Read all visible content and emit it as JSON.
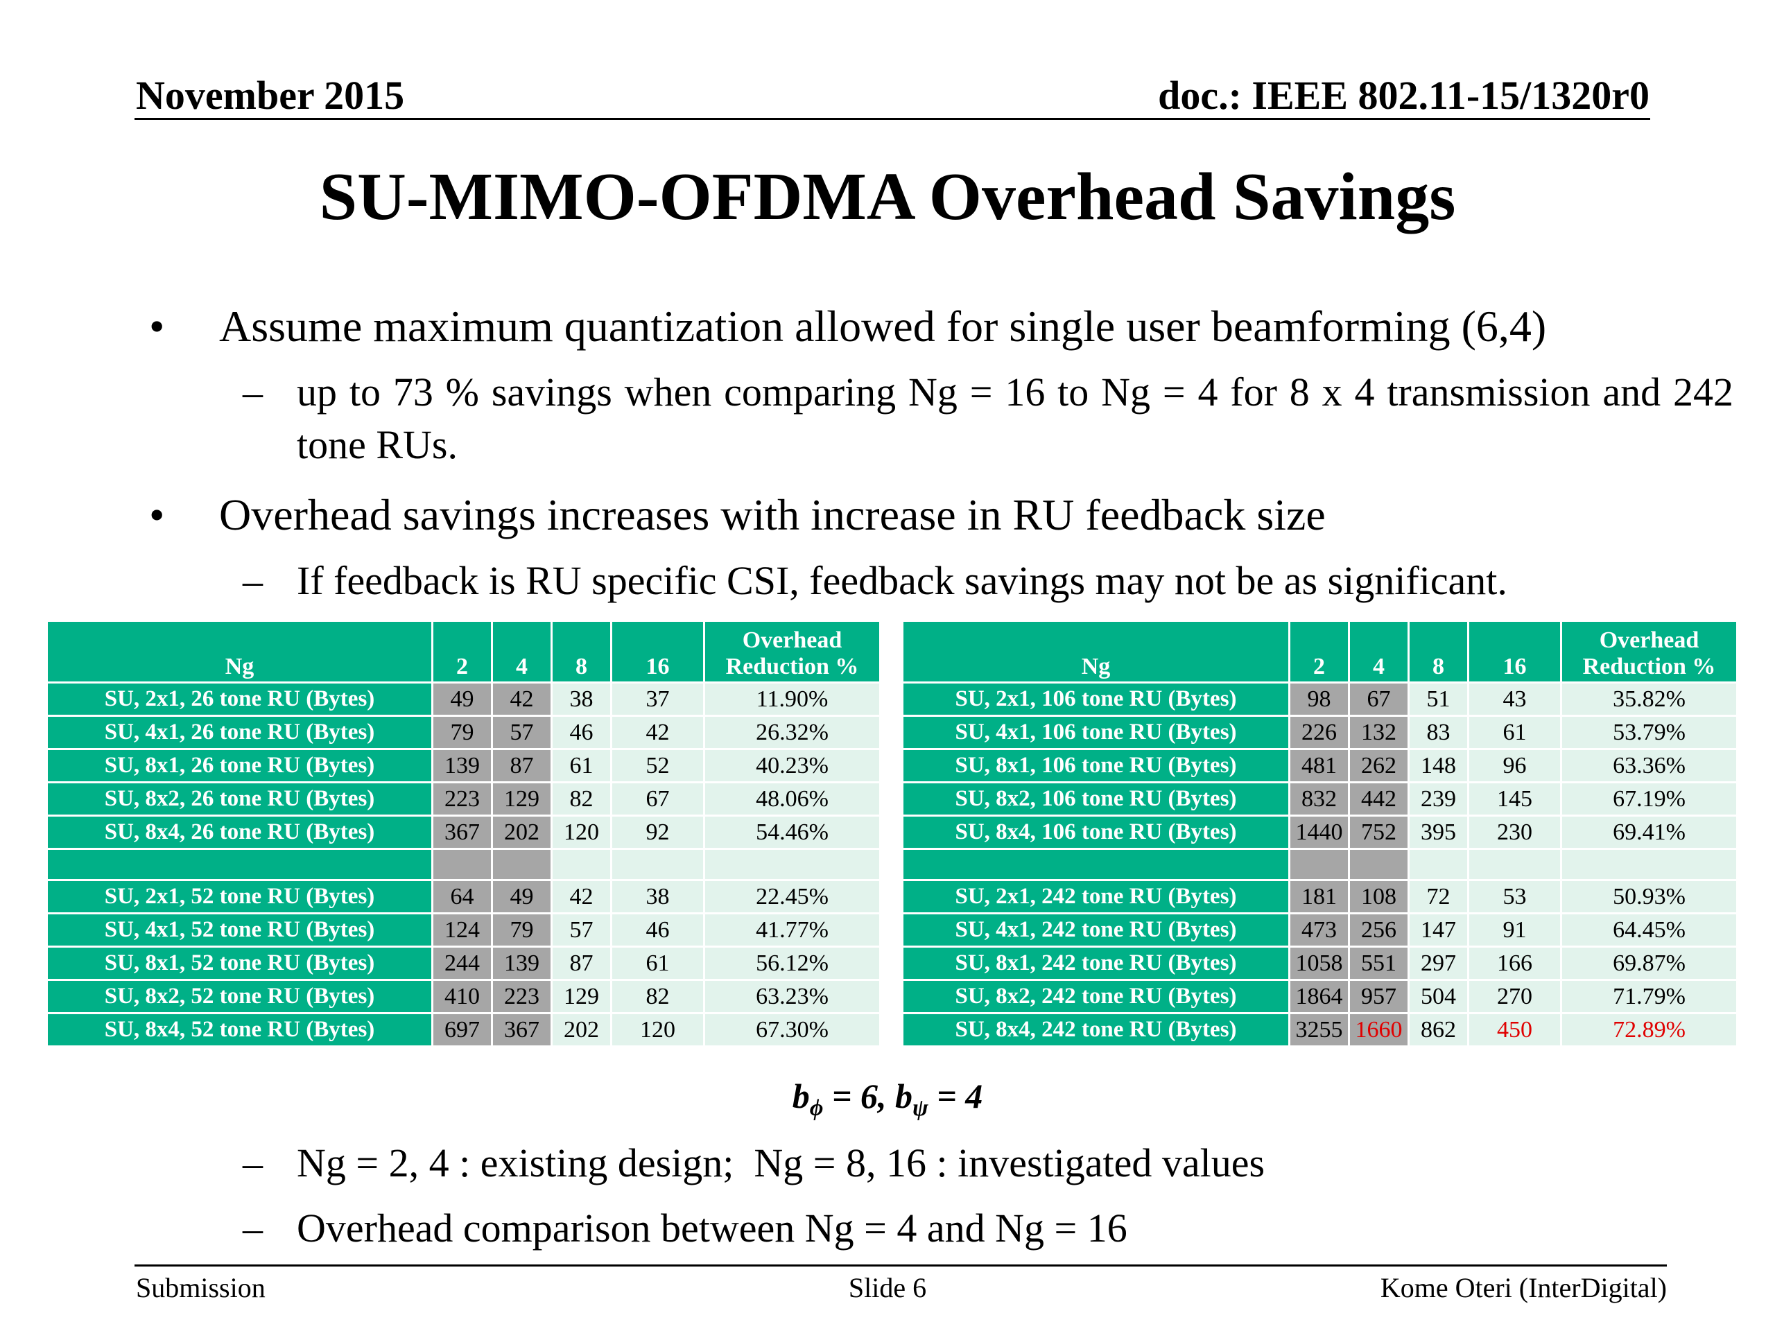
{
  "header": {
    "date": "November 2015",
    "doc": "doc.: IEEE 802.11-15/1320r0"
  },
  "title": "SU-MIMO-OFDMA Overhead Savings",
  "bullets": {
    "b1": "Assume maximum quantization allowed for single user beamforming (6,4)",
    "b1_sub": "up to 73 % savings when comparing Ng = 16 to Ng = 4 for 8 x 4 transmission and 242 tone RUs.",
    "b2": "Overhead savings increases with increase in RU feedback size",
    "b2_sub": "If feedback is RU specific CSI, feedback savings may not be as significant."
  },
  "bullet_symbol": "•",
  "dash_symbol": "–",
  "tables": {
    "headers": [
      "Ng",
      "2",
      "4",
      "8",
      "16",
      "Overhead Reduction %"
    ],
    "left": [
      [
        "SU, 2x1, 26 tone RU (Bytes)",
        "49",
        "42",
        "38",
        "37",
        "11.90%"
      ],
      [
        "SU, 4x1, 26 tone RU (Bytes)",
        "79",
        "57",
        "46",
        "42",
        "26.32%"
      ],
      [
        "SU, 8x1, 26 tone RU (Bytes)",
        "139",
        "87",
        "61",
        "52",
        "40.23%"
      ],
      [
        "SU, 8x2, 26 tone RU (Bytes)",
        "223",
        "129",
        "82",
        "67",
        "48.06%"
      ],
      [
        "SU, 8x4, 26 tone RU (Bytes)",
        "367",
        "202",
        "120",
        "92",
        "54.46%"
      ],
      [
        "",
        "",
        "",
        "",
        "",
        ""
      ],
      [
        "SU, 2x1, 52 tone RU (Bytes)",
        "64",
        "49",
        "42",
        "38",
        "22.45%"
      ],
      [
        "SU, 4x1, 52 tone RU (Bytes)",
        "124",
        "79",
        "57",
        "46",
        "41.77%"
      ],
      [
        "SU, 8x1, 52 tone RU (Bytes)",
        "244",
        "139",
        "87",
        "61",
        "56.12%"
      ],
      [
        "SU, 8x2, 52 tone RU (Bytes)",
        "410",
        "223",
        "129",
        "82",
        "63.23%"
      ],
      [
        "SU, 8x4, 52 tone RU (Bytes)",
        "697",
        "367",
        "202",
        "120",
        "67.30%"
      ]
    ],
    "right": [
      [
        "SU, 2x1, 106 tone RU (Bytes)",
        "98",
        "67",
        "51",
        "43",
        "35.82%"
      ],
      [
        "SU, 4x1, 106 tone RU (Bytes)",
        "226",
        "132",
        "83",
        "61",
        "53.79%"
      ],
      [
        "SU, 8x1, 106 tone RU (Bytes)",
        "481",
        "262",
        "148",
        "96",
        "63.36%"
      ],
      [
        "SU, 8x2, 106 tone RU (Bytes)",
        "832",
        "442",
        "239",
        "145",
        "67.19%"
      ],
      [
        "SU, 8x4, 106 tone RU (Bytes)",
        "1440",
        "752",
        "395",
        "230",
        "69.41%"
      ],
      [
        "",
        "",
        "",
        "",
        "",
        ""
      ],
      [
        "SU, 2x1, 242 tone RU (Bytes)",
        "181",
        "108",
        "72",
        "53",
        "50.93%"
      ],
      [
        "SU, 4x1, 242 tone RU (Bytes)",
        "473",
        "256",
        "147",
        "91",
        "64.45%"
      ],
      [
        "SU, 8x1, 242 tone RU (Bytes)",
        "1058",
        "551",
        "297",
        "166",
        "69.87%"
      ],
      [
        "SU, 8x2, 242 tone RU (Bytes)",
        "1864",
        "957",
        "504",
        "270",
        "71.79%"
      ],
      [
        "SU, 8x4, 242 tone RU (Bytes)",
        "3255",
        "1660",
        "862",
        "450",
        "72.89%"
      ]
    ],
    "highlight_color": "#e00000"
  },
  "formula": {
    "b": "b",
    "phi": "ϕ",
    "psi": "ψ",
    "eq1": " = 6, ",
    "eq2": " = 4"
  },
  "notes": [
    "Ng = 2, 4 : existing design;  Ng = 8, 16 : investigated values",
    "Overhead comparison between Ng = 4 and Ng = 16"
  ],
  "footer": {
    "left": "Submission",
    "center": "Slide 6",
    "right": "Kome Oteri (InterDigital)"
  }
}
